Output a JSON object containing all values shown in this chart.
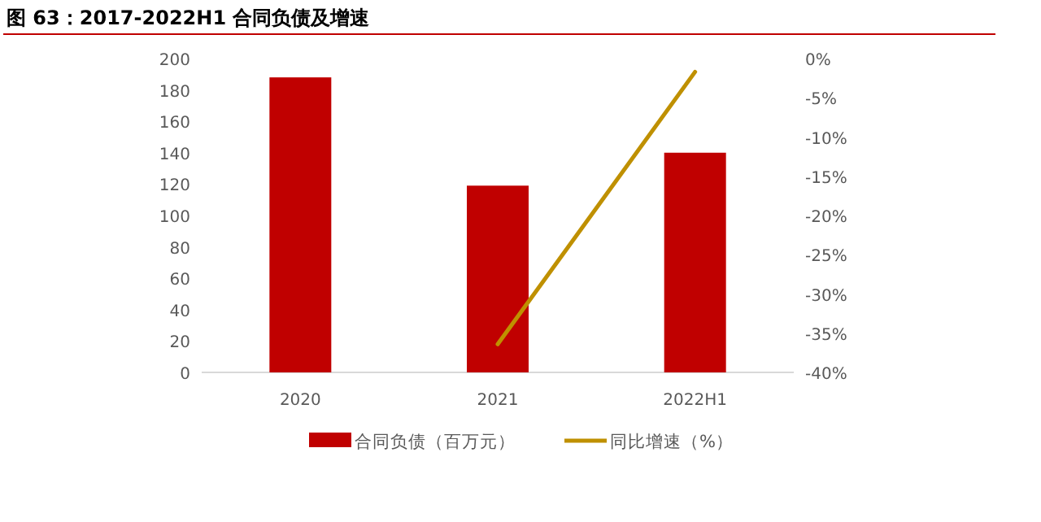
{
  "chart_data": {
    "type": "bar",
    "title": "图 63：2017-2022H1 合同负债及增速",
    "categories": [
      "2020",
      "2021",
      "2022H1"
    ],
    "series": [
      {
        "name": "合同负债（百万元）",
        "color": "#c00000",
        "values": [
          188,
          119,
          140
        ]
      },
      {
        "name": "同比增速（%）",
        "type": "line",
        "axis": "y2",
        "color": "#bf9000",
        "values": [
          null,
          -36.4,
          -1.7
        ]
      }
    ],
    "ylim": [
      0,
      200
    ],
    "yticks": [
      0,
      20,
      40,
      60,
      80,
      100,
      120,
      140,
      160,
      180,
      200
    ],
    "y2lim": [
      -40,
      0
    ],
    "y2ticks": [
      {
        "value": -40,
        "label": "-40%"
      },
      {
        "value": -35,
        "label": "-35%"
      },
      {
        "value": -30,
        "label": "-30%"
      },
      {
        "value": -25,
        "label": "-25%"
      },
      {
        "value": -20,
        "label": "-20%"
      },
      {
        "value": -15,
        "label": "-15%"
      },
      {
        "value": -10,
        "label": "-10%"
      },
      {
        "value": -5,
        "label": "-5%"
      },
      {
        "value": 0,
        "label": "0%"
      }
    ],
    "grid": false,
    "legend": "bottom",
    "line_style": "solid",
    "marker": "none"
  }
}
